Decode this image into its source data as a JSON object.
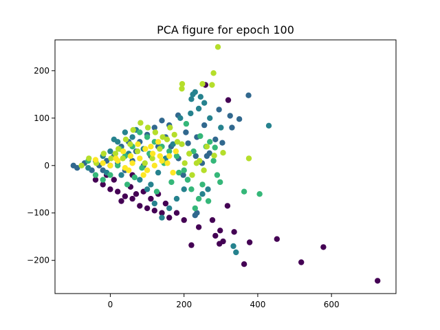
{
  "chart_data": {
    "type": "scatter",
    "title": "PCA figure for epoch 100",
    "xlabel": "",
    "ylabel": "",
    "xlim": [
      -150,
      775
    ],
    "ylim": [
      -270,
      265
    ],
    "xticks": [
      0,
      200,
      400,
      600
    ],
    "yticks": [
      -200,
      -100,
      0,
      100,
      200
    ],
    "xtick_labels": [
      "0",
      "200",
      "400",
      "600"
    ],
    "ytick_labels": [
      "−200",
      "−100",
      "0",
      "100",
      "200"
    ],
    "grid": false,
    "legend": "none",
    "colormap": [
      "#440154",
      "#31688e",
      "#26828e",
      "#35b779",
      "#b5de2b",
      "#fde725"
    ],
    "series": [
      {
        "points": [
          [
            725,
            -243
          ],
          [
            578,
            -172
          ],
          [
            518,
            -204
          ],
          [
            452,
            -155
          ],
          [
            378,
            -162
          ],
          [
            363,
            -208
          ],
          [
            336,
            -140
          ],
          [
            318,
            -85
          ],
          [
            306,
            -160
          ],
          [
            298,
            -137
          ],
          [
            296,
            -165
          ],
          [
            285,
            -148
          ],
          [
            277,
            -115
          ],
          [
            220,
            -168
          ],
          [
            240,
            -130
          ],
          [
            200,
            -115
          ],
          [
            180,
            -100
          ],
          [
            160,
            -110
          ],
          [
            140,
            -100
          ],
          [
            120,
            -95
          ],
          [
            100,
            -90
          ],
          [
            80,
            -85
          ],
          [
            60,
            -70
          ],
          [
            40,
            -65
          ],
          [
            20,
            -55
          ],
          [
            0,
            -50
          ],
          [
            -20,
            -40
          ],
          [
            -40,
            -30
          ],
          [
            320,
            138
          ],
          [
            258,
            170
          ],
          [
            30,
            -75
          ],
          [
            70,
            -60
          ],
          [
            110,
            -70
          ],
          [
            150,
            -80
          ],
          [
            55,
            -45
          ],
          [
            90,
            -55
          ],
          [
            130,
            -60
          ],
          [
            10,
            -30
          ],
          [
            -10,
            -20
          ],
          [
            60,
            -20
          ]
        ]
      },
      {
        "points": [
          [
            350,
            98
          ],
          [
            295,
            118
          ],
          [
            330,
            80
          ],
          [
            304,
            48
          ],
          [
            269,
            26
          ],
          [
            249,
            5
          ],
          [
            232,
            20
          ],
          [
            211,
            47
          ],
          [
            198,
            -20
          ],
          [
            184,
            106
          ],
          [
            160,
            85
          ],
          [
            150,
            60
          ],
          [
            130,
            40
          ],
          [
            110,
            20
          ],
          [
            90,
            0
          ],
          [
            70,
            30
          ],
          [
            50,
            50
          ],
          [
            30,
            40
          ],
          [
            10,
            20
          ],
          [
            -10,
            10
          ],
          [
            -30,
            0
          ],
          [
            -50,
            -10
          ],
          [
            -70,
            5
          ],
          [
            -90,
            -5
          ],
          [
            -100,
            0
          ],
          [
            375,
            148
          ],
          [
            325,
            105
          ],
          [
            285,
            55
          ],
          [
            255,
            85
          ],
          [
            235,
            60
          ],
          [
            205,
            70
          ],
          [
            185,
            15
          ],
          [
            165,
            40
          ],
          [
            140,
            95
          ],
          [
            120,
            80
          ],
          [
            100,
            65
          ],
          [
            80,
            50
          ],
          [
            60,
            10
          ],
          [
            40,
            -10
          ],
          [
            20,
            5
          ],
          [
            235,
            -100
          ],
          [
            262,
            20
          ],
          [
            0,
            0
          ],
          [
            -20,
            -10
          ],
          [
            230,
            -105
          ]
        ]
      },
      {
        "points": [
          [
            430,
            84
          ],
          [
            334,
            -170
          ],
          [
            341,
            -183
          ],
          [
            300,
            80
          ],
          [
            270,
            100
          ],
          [
            265,
            -50
          ],
          [
            250,
            -60
          ],
          [
            240,
            120
          ],
          [
            230,
            155
          ],
          [
            220,
            140
          ],
          [
            210,
            -30
          ],
          [
            200,
            -50
          ],
          [
            180,
            -70
          ],
          [
            160,
            -90
          ],
          [
            140,
            -110
          ],
          [
            120,
            -80
          ],
          [
            100,
            -50
          ],
          [
            80,
            -30
          ],
          [
            60,
            60
          ],
          [
            40,
            70
          ],
          [
            20,
            50
          ],
          [
            0,
            30
          ],
          [
            -20,
            20
          ],
          [
            -40,
            10
          ],
          [
            -60,
            -5
          ],
          [
            224,
            150
          ],
          [
            245,
            145
          ],
          [
            255,
            132
          ],
          [
            218,
            110
          ],
          [
            190,
            100
          ],
          [
            170,
            45
          ],
          [
            150,
            15
          ],
          [
            130,
            -15
          ],
          [
            110,
            -40
          ],
          [
            90,
            35
          ],
          [
            70,
            75
          ],
          [
            50,
            25
          ],
          [
            30,
            -20
          ],
          [
            10,
            55
          ],
          [
            -10,
            -15
          ]
        ]
      },
      {
        "points": [
          [
            405,
            -60
          ],
          [
            363,
            -55
          ],
          [
            290,
            -20
          ],
          [
            280,
            10
          ],
          [
            270,
            50
          ],
          [
            260,
            40
          ],
          [
            250,
            -40
          ],
          [
            240,
            -70
          ],
          [
            230,
            -90
          ],
          [
            220,
            -50
          ],
          [
            210,
            -30
          ],
          [
            200,
            -10
          ],
          [
            180,
            20
          ],
          [
            160,
            30
          ],
          [
            140,
            40
          ],
          [
            120,
            50
          ],
          [
            100,
            60
          ],
          [
            80,
            70
          ],
          [
            60,
            40
          ],
          [
            40,
            20
          ],
          [
            20,
            0
          ],
          [
            0,
            -20
          ],
          [
            -20,
            -30
          ],
          [
            -40,
            -20
          ],
          [
            -60,
            10
          ],
          [
            298,
            -35
          ],
          [
            284,
            38
          ],
          [
            266,
            -75
          ],
          [
            244,
            62
          ],
          [
            226,
            30
          ],
          [
            206,
            88
          ],
          [
            186,
            -15
          ],
          [
            166,
            -35
          ],
          [
            146,
            5
          ],
          [
            126,
            -55
          ],
          [
            106,
            25
          ],
          [
            86,
            -5
          ],
          [
            66,
            -25
          ],
          [
            46,
            -40
          ],
          [
            26,
            35
          ]
        ]
      },
      {
        "points": [
          [
            292,
            250
          ],
          [
            280,
            195
          ],
          [
            276,
            170
          ],
          [
            250,
            172
          ],
          [
            195,
            172
          ],
          [
            194,
            162
          ],
          [
            376,
            15
          ],
          [
            306,
            27
          ],
          [
            282,
            21
          ],
          [
            262,
            40
          ],
          [
            242,
            10
          ],
          [
            222,
            -20
          ],
          [
            202,
            5
          ],
          [
            182,
            50
          ],
          [
            162,
            80
          ],
          [
            142,
            60
          ],
          [
            122,
            70
          ],
          [
            102,
            80
          ],
          [
            82,
            90
          ],
          [
            62,
            75
          ],
          [
            42,
            55
          ],
          [
            22,
            35
          ],
          [
            2,
            15
          ],
          [
            -18,
            25
          ],
          [
            -38,
            5
          ],
          [
            -58,
            15
          ],
          [
            -78,
            0
          ],
          [
            254,
            -10
          ],
          [
            234,
            5
          ],
          [
            214,
            25
          ],
          [
            194,
            45
          ],
          [
            174,
            65
          ],
          [
            154,
            55
          ],
          [
            134,
            35
          ],
          [
            114,
            15
          ],
          [
            94,
            5
          ],
          [
            74,
            30
          ],
          [
            54,
            45
          ],
          [
            34,
            15
          ],
          [
            14,
            25
          ]
        ]
      },
      {
        "points": [
          [
            178,
            30
          ],
          [
            160,
            20
          ],
          [
            140,
            10
          ],
          [
            120,
            0
          ],
          [
            100,
            -10
          ],
          [
            80,
            15
          ],
          [
            60,
            5
          ],
          [
            40,
            -5
          ],
          [
            20,
            10
          ],
          [
            0,
            0
          ],
          [
            115,
            25
          ],
          [
            95,
            35
          ],
          [
            75,
            45
          ],
          [
            55,
            20
          ],
          [
            35,
            30
          ],
          [
            15,
            15
          ],
          [
            135,
            20
          ],
          [
            155,
            5
          ],
          [
            170,
            -15
          ],
          [
            90,
            -20
          ],
          [
            -20,
            5
          ],
          [
            -40,
            12
          ],
          [
            50,
            -10
          ],
          [
            110,
            40
          ],
          [
            130,
            50
          ]
        ]
      }
    ]
  }
}
